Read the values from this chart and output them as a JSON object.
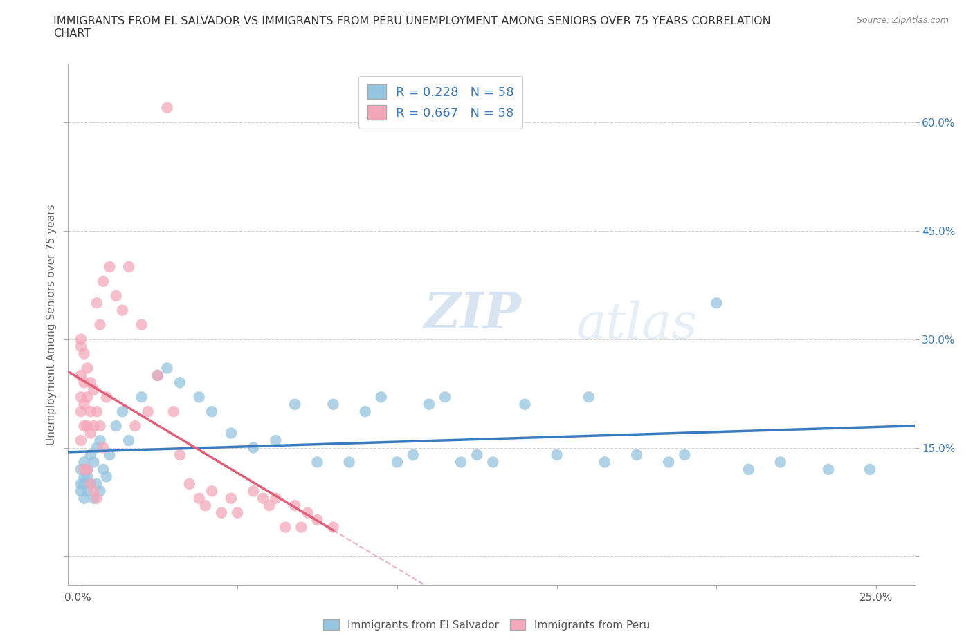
{
  "title": "IMMIGRANTS FROM EL SALVADOR VS IMMIGRANTS FROM PERU UNEMPLOYMENT AMONG SENIORS OVER 75 YEARS CORRELATION\nCHART",
  "source": "Source: ZipAtlas.com",
  "ylabel": "Unemployment Among Seniors over 75 years",
  "watermark": "ZIPatlas",
  "xlim": [
    -0.003,
    0.262
  ],
  "ylim": [
    -0.04,
    0.68
  ],
  "x_tick_positions": [
    0.0,
    0.05,
    0.1,
    0.15,
    0.2,
    0.25
  ],
  "x_tick_labels": [
    "0.0%",
    "",
    "",
    "",
    "",
    "25.0%"
  ],
  "y_tick_positions": [
    0.0,
    0.15,
    0.3,
    0.45,
    0.6
  ],
  "y_tick_labels": [
    "",
    "15.0%",
    "30.0%",
    "45.0%",
    "60.0%"
  ],
  "legend_labels": [
    "Immigrants from El Salvador",
    "Immigrants from Peru"
  ],
  "legend_R": [
    0.228,
    0.667
  ],
  "legend_N": [
    58,
    58
  ],
  "color_blue": "#94c4e0",
  "color_pink": "#f4a7b9",
  "line_color_blue": "#3a7bbf",
  "line_color_pink": "#e0607a",
  "background_color": "#ffffff",
  "grid_color": "#cccccc",
  "es_x": [
    0.001,
    0.001,
    0.001,
    0.002,
    0.002,
    0.002,
    0.002,
    0.003,
    0.003,
    0.003,
    0.004,
    0.004,
    0.005,
    0.005,
    0.006,
    0.006,
    0.007,
    0.007,
    0.008,
    0.009,
    0.01,
    0.012,
    0.014,
    0.016,
    0.02,
    0.025,
    0.028,
    0.032,
    0.038,
    0.042,
    0.048,
    0.055,
    0.062,
    0.068,
    0.075,
    0.08,
    0.085,
    0.09,
    0.095,
    0.1,
    0.105,
    0.11,
    0.115,
    0.12,
    0.125,
    0.13,
    0.14,
    0.15,
    0.16,
    0.165,
    0.175,
    0.185,
    0.19,
    0.2,
    0.21,
    0.22,
    0.235,
    0.248
  ],
  "es_y": [
    0.12,
    0.1,
    0.09,
    0.13,
    0.11,
    0.1,
    0.08,
    0.12,
    0.11,
    0.09,
    0.14,
    0.1,
    0.13,
    0.08,
    0.15,
    0.1,
    0.16,
    0.09,
    0.12,
    0.11,
    0.14,
    0.18,
    0.2,
    0.16,
    0.22,
    0.25,
    0.26,
    0.24,
    0.22,
    0.2,
    0.17,
    0.15,
    0.16,
    0.21,
    0.13,
    0.21,
    0.13,
    0.2,
    0.22,
    0.13,
    0.14,
    0.21,
    0.22,
    0.13,
    0.14,
    0.13,
    0.21,
    0.14,
    0.22,
    0.13,
    0.14,
    0.13,
    0.14,
    0.35,
    0.12,
    0.13,
    0.12,
    0.12
  ],
  "peru_x": [
    0.001,
    0.001,
    0.001,
    0.001,
    0.001,
    0.001,
    0.002,
    0.002,
    0.002,
    0.002,
    0.002,
    0.003,
    0.003,
    0.003,
    0.003,
    0.004,
    0.004,
    0.004,
    0.004,
    0.005,
    0.005,
    0.005,
    0.006,
    0.006,
    0.006,
    0.007,
    0.007,
    0.008,
    0.008,
    0.009,
    0.01,
    0.012,
    0.014,
    0.016,
    0.018,
    0.02,
    0.022,
    0.025,
    0.028,
    0.03,
    0.032,
    0.035,
    0.038,
    0.04,
    0.042,
    0.045,
    0.048,
    0.05,
    0.055,
    0.058,
    0.06,
    0.062,
    0.065,
    0.068,
    0.07,
    0.072,
    0.075,
    0.08
  ],
  "peru_y": [
    0.3,
    0.29,
    0.25,
    0.22,
    0.2,
    0.16,
    0.28,
    0.24,
    0.21,
    0.18,
    0.12,
    0.26,
    0.22,
    0.18,
    0.12,
    0.24,
    0.2,
    0.17,
    0.1,
    0.23,
    0.18,
    0.09,
    0.35,
    0.2,
    0.08,
    0.32,
    0.18,
    0.38,
    0.15,
    0.22,
    0.4,
    0.36,
    0.34,
    0.4,
    0.18,
    0.32,
    0.2,
    0.25,
    0.62,
    0.2,
    0.14,
    0.1,
    0.08,
    0.07,
    0.09,
    0.06,
    0.08,
    0.06,
    0.09,
    0.08,
    0.07,
    0.08,
    0.04,
    0.07,
    0.04,
    0.06,
    0.05,
    0.04
  ]
}
